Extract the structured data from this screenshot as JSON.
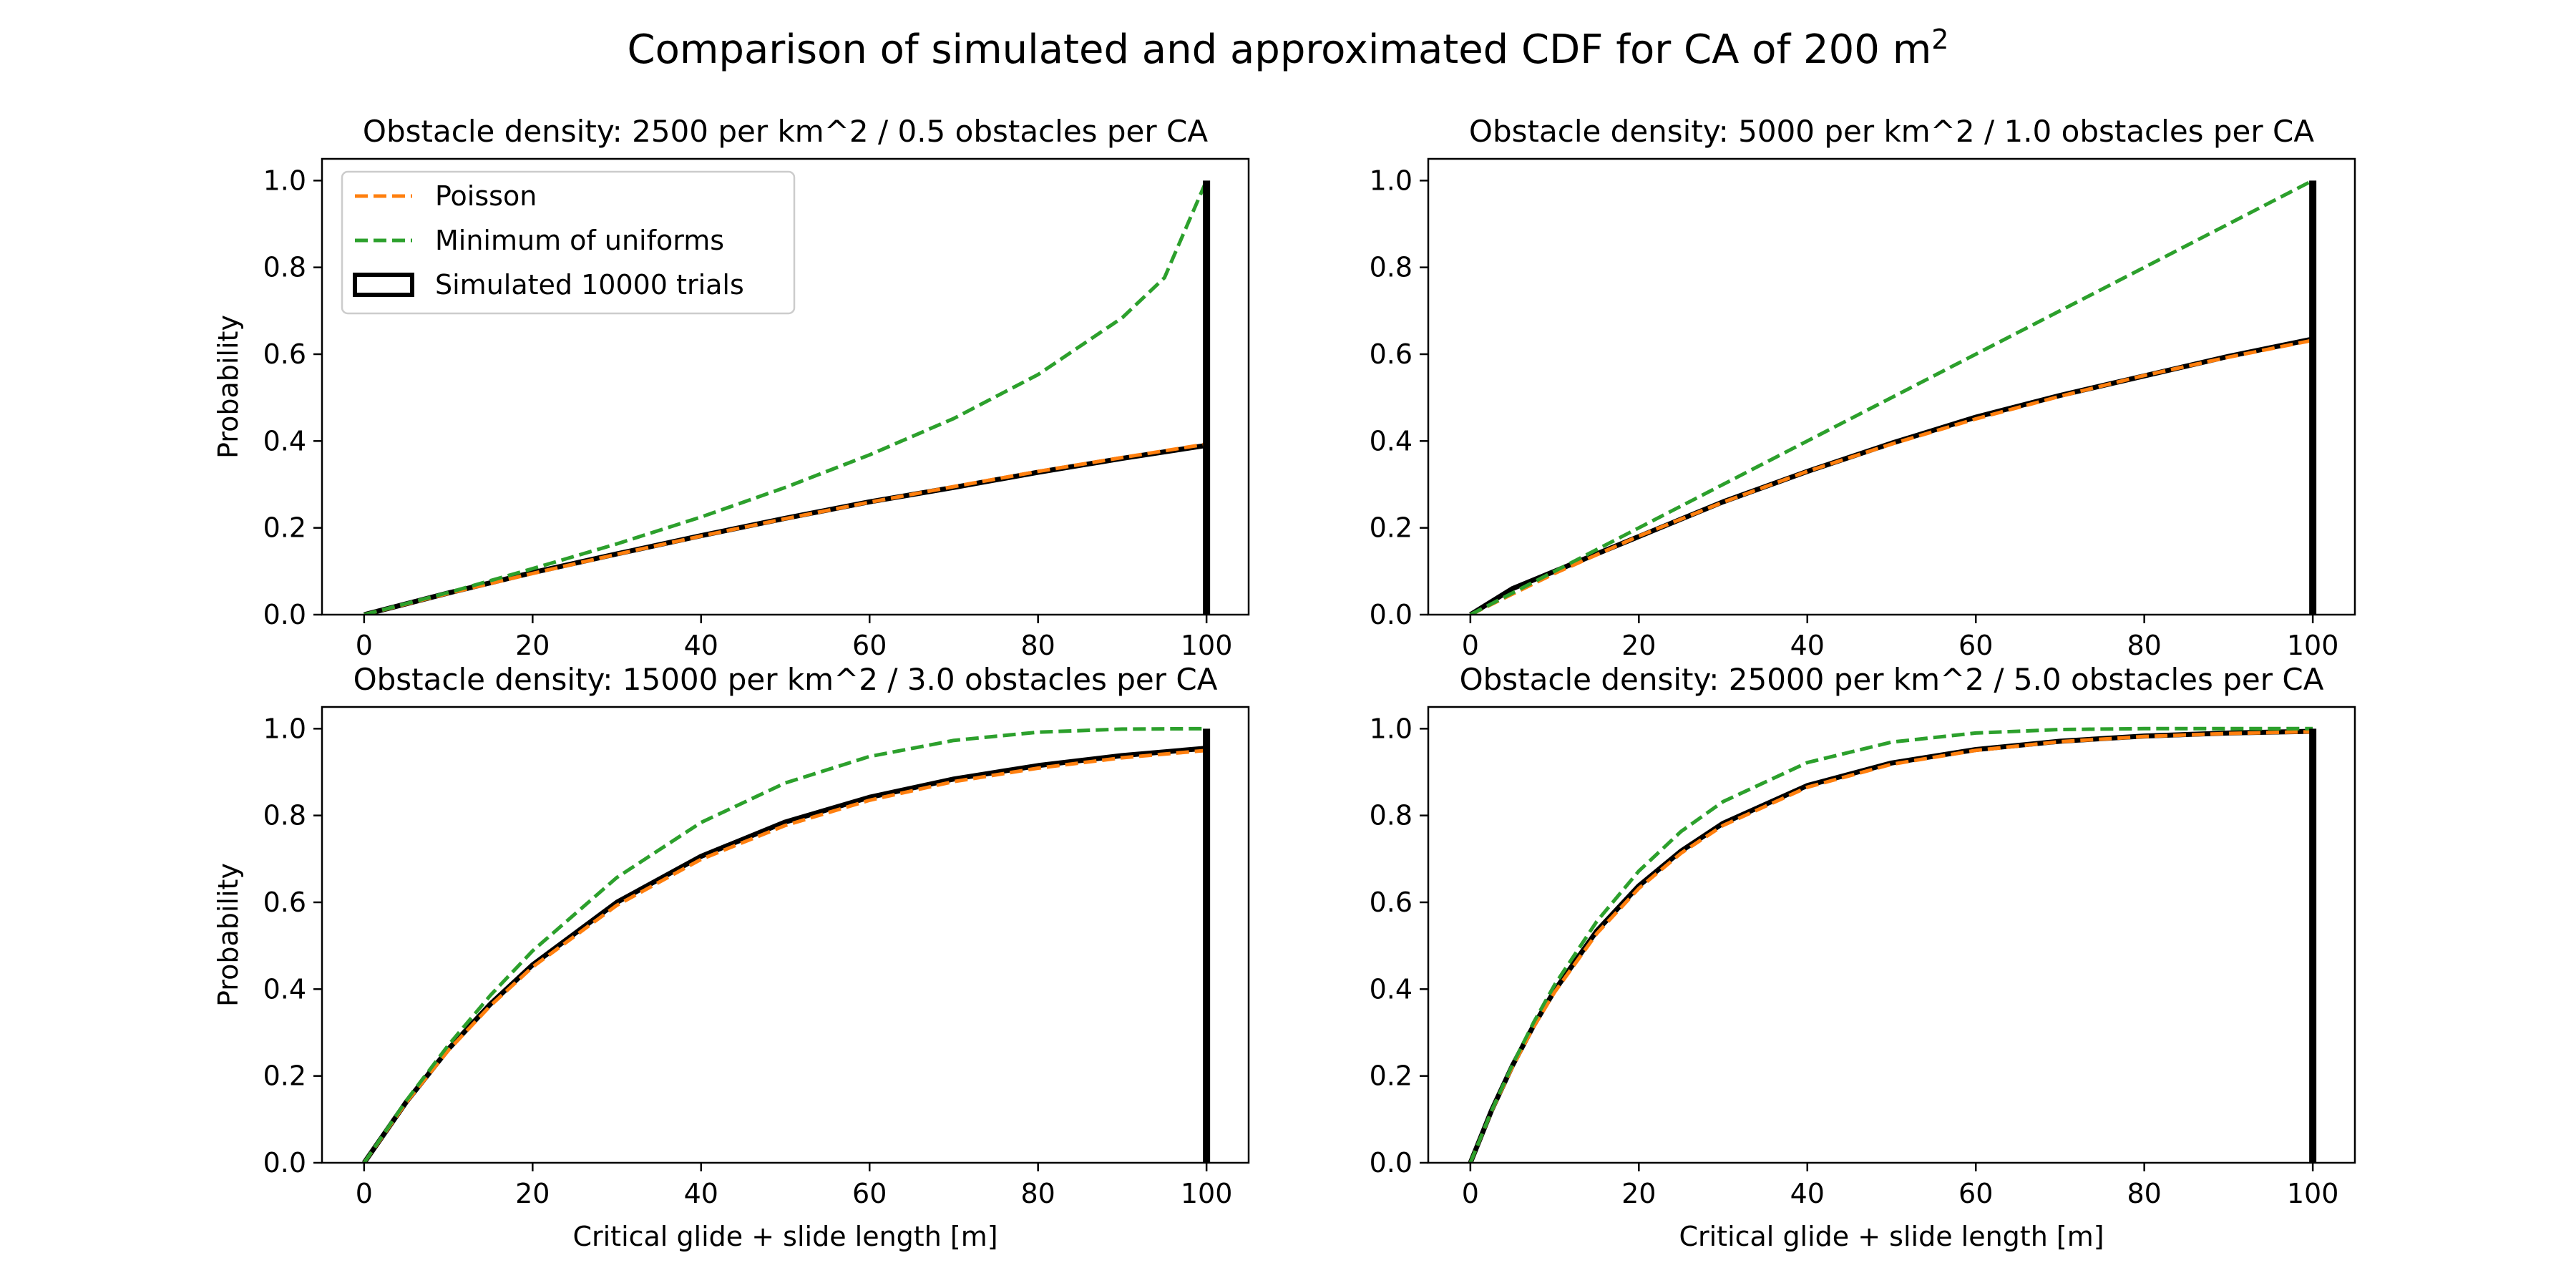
{
  "figure": {
    "suptitle": "Comparison of simulated and approximated CDF for CA of 200 m",
    "suptitle_superscript": "2",
    "colors": {
      "poisson": "#ff7f0e",
      "min_uniform": "#2ca02c",
      "simulated": "#000000"
    }
  },
  "legend": {
    "placement": "upper-left of first subplot",
    "entries": [
      {
        "label": "Poisson",
        "style": "dashed",
        "color": "#ff7f0e"
      },
      {
        "label": "Minimum of uniforms",
        "style": "dashed",
        "color": "#2ca02c"
      },
      {
        "label": "Simulated 10000 trials",
        "style": "step-outline",
        "color": "#000000"
      }
    ]
  },
  "chart_data": [
    {
      "type": "line",
      "title": "Obstacle density: 2500 per km^2 / 0.5 obstacles per CA",
      "xlabel": "",
      "ylabel": "Probability",
      "xlim": [
        -5,
        105
      ],
      "ylim": [
        0,
        1.05
      ],
      "xticks": [
        "0",
        "20",
        "40",
        "60",
        "80",
        "100"
      ],
      "yticks": [
        "0.0",
        "0.2",
        "0.4",
        "0.6",
        "0.8",
        "1.0"
      ],
      "grid": false,
      "obstacles_per_ca": 0.5,
      "series": [
        {
          "name": "Poisson",
          "x": [
            0,
            10,
            20,
            30,
            40,
            50,
            60,
            70,
            80,
            90,
            100
          ],
          "values": [
            0,
            0.049,
            0.095,
            0.139,
            0.181,
            0.221,
            0.259,
            0.295,
            0.33,
            0.362,
            0.393
          ]
        },
        {
          "name": "Minimum of uniforms",
          "x": [
            0,
            10,
            20,
            30,
            40,
            50,
            60,
            70,
            80,
            90,
            95,
            100
          ],
          "values": [
            0,
            0.051,
            0.106,
            0.163,
            0.225,
            0.293,
            0.368,
            0.452,
            0.553,
            0.684,
            0.776,
            1.0
          ]
        },
        {
          "name": "Simulated 10000 trials",
          "x": [
            0,
            10,
            20,
            30,
            40,
            50,
            60,
            70,
            80,
            90,
            100
          ],
          "values": [
            0,
            0.05,
            0.097,
            0.14,
            0.182,
            0.222,
            0.26,
            0.293,
            0.328,
            0.36,
            0.39
          ]
        }
      ]
    },
    {
      "type": "line",
      "title": "Obstacle density: 5000 per km^2 / 1.0 obstacles per CA",
      "xlabel": "",
      "ylabel": "",
      "xlim": [
        -5,
        105
      ],
      "ylim": [
        0,
        1.05
      ],
      "xticks": [
        "0",
        "20",
        "40",
        "60",
        "80",
        "100"
      ],
      "yticks": [
        "0.0",
        "0.2",
        "0.4",
        "0.6",
        "0.8",
        "1.0"
      ],
      "grid": false,
      "obstacles_per_ca": 1.0,
      "series": [
        {
          "name": "Poisson",
          "x": [
            0,
            10,
            20,
            30,
            40,
            50,
            60,
            70,
            80,
            90,
            100
          ],
          "values": [
            0,
            0.095,
            0.181,
            0.259,
            0.33,
            0.393,
            0.451,
            0.503,
            0.551,
            0.593,
            0.632
          ]
        },
        {
          "name": "Minimum of uniforms",
          "x": [
            0,
            20,
            40,
            60,
            80,
            100
          ],
          "values": [
            0,
            0.2,
            0.4,
            0.6,
            0.8,
            1.0
          ]
        },
        {
          "name": "Simulated 10000 trials",
          "x": [
            0,
            5,
            10,
            20,
            30,
            40,
            50,
            60,
            70,
            80,
            90,
            100
          ],
          "values": [
            0,
            0.06,
            0.1,
            0.18,
            0.26,
            0.33,
            0.395,
            0.455,
            0.505,
            0.55,
            0.595,
            0.635
          ]
        }
      ]
    },
    {
      "type": "line",
      "title": "Obstacle density: 15000 per km^2 / 3.0 obstacles per CA",
      "xlabel": "Critical glide + slide length [m]",
      "ylabel": "Probability",
      "xlim": [
        -5,
        105
      ],
      "ylim": [
        0,
        1.05
      ],
      "xticks": [
        "0",
        "20",
        "40",
        "60",
        "80",
        "100"
      ],
      "yticks": [
        "0.0",
        "0.2",
        "0.4",
        "0.6",
        "0.8",
        "1.0"
      ],
      "grid": false,
      "obstacles_per_ca": 3.0,
      "series": [
        {
          "name": "Poisson",
          "x": [
            0,
            5,
            10,
            15,
            20,
            30,
            40,
            50,
            60,
            70,
            80,
            90,
            100
          ],
          "values": [
            0,
            0.139,
            0.259,
            0.362,
            0.451,
            0.593,
            0.699,
            0.777,
            0.835,
            0.878,
            0.909,
            0.933,
            0.95
          ]
        },
        {
          "name": "Minimum of uniforms",
          "x": [
            0,
            5,
            10,
            15,
            20,
            30,
            40,
            50,
            60,
            70,
            80,
            90,
            100
          ],
          "values": [
            0,
            0.143,
            0.271,
            0.386,
            0.488,
            0.657,
            0.784,
            0.875,
            0.936,
            0.973,
            0.992,
            0.999,
            1.0
          ]
        },
        {
          "name": "Simulated 10000 trials",
          "x": [
            0,
            5,
            10,
            15,
            20,
            30,
            40,
            50,
            60,
            70,
            80,
            90,
            100
          ],
          "values": [
            0,
            0.14,
            0.262,
            0.366,
            0.456,
            0.6,
            0.706,
            0.785,
            0.842,
            0.884,
            0.915,
            0.938,
            0.955
          ]
        }
      ]
    },
    {
      "type": "line",
      "title": "Obstacle density: 25000 per km^2 / 5.0 obstacles per CA",
      "xlabel": "Critical glide + slide length [m]",
      "ylabel": "",
      "xlim": [
        -5,
        105
      ],
      "ylim": [
        0,
        1.05
      ],
      "xticks": [
        "0",
        "20",
        "40",
        "60",
        "80",
        "100"
      ],
      "yticks": [
        "0.0",
        "0.2",
        "0.4",
        "0.6",
        "0.8",
        "1.0"
      ],
      "grid": false,
      "obstacles_per_ca": 5.0,
      "series": [
        {
          "name": "Poisson",
          "x": [
            0,
            2.5,
            5,
            7.5,
            10,
            15,
            20,
            25,
            30,
            40,
            50,
            60,
            70,
            80,
            90,
            100
          ],
          "values": [
            0,
            0.118,
            0.221,
            0.313,
            0.393,
            0.528,
            0.632,
            0.713,
            0.777,
            0.865,
            0.918,
            0.95,
            0.97,
            0.982,
            0.989,
            0.993
          ]
        },
        {
          "name": "Minimum of uniforms",
          "x": [
            0,
            2.5,
            5,
            7.5,
            10,
            15,
            20,
            25,
            30,
            40,
            50,
            60,
            70,
            80,
            90,
            100
          ],
          "values": [
            0,
            0.119,
            0.226,
            0.323,
            0.41,
            0.556,
            0.672,
            0.763,
            0.832,
            0.922,
            0.969,
            0.99,
            0.998,
            1.0,
            1.0,
            1.0
          ]
        },
        {
          "name": "Simulated 10000 trials",
          "x": [
            0,
            2.5,
            5,
            7.5,
            10,
            15,
            20,
            25,
            30,
            40,
            50,
            60,
            70,
            80,
            90,
            100
          ],
          "values": [
            0,
            0.12,
            0.224,
            0.316,
            0.397,
            0.534,
            0.638,
            0.718,
            0.782,
            0.869,
            0.921,
            0.952,
            0.971,
            0.983,
            0.99,
            0.994
          ]
        }
      ]
    }
  ]
}
